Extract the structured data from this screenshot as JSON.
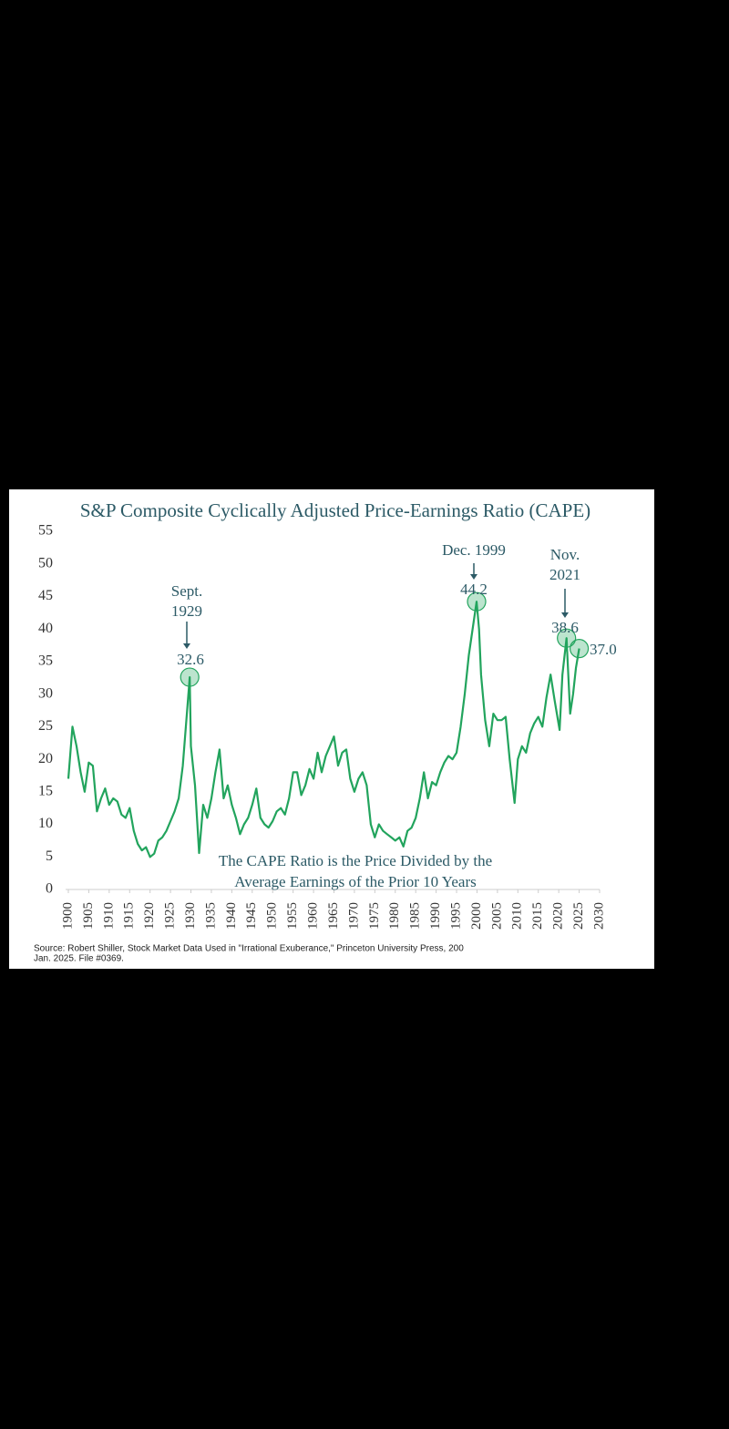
{
  "chart_data": {
    "type": "line",
    "title": "S&P Composite Cyclically Adjusted Price-Earnings Ratio (CAPE)",
    "note_lines": [
      "The CAPE Ratio is the Price Divided by the",
      "Average Earnings of the Prior 10 Years"
    ],
    "source_lines": [
      "Source: Robert Shiller, Stock Market Data Used in \"Irrational Exuberance,\" Princeton University Press, 200",
      "Jan. 2025. File #0369."
    ],
    "annotations": [
      {
        "lines": [
          "Sept.",
          "1929"
        ],
        "label": "32.6",
        "x": 1929.7,
        "value": 32.6
      },
      {
        "lines": [
          "Dec. 1999"
        ],
        "label": "44.2",
        "x": 1999.9,
        "value": 44.2
      },
      {
        "lines": [
          "Nov.",
          "2021"
        ],
        "label": "38.6",
        "x": 2021.9,
        "value": 38.6
      },
      {
        "lines": [],
        "label": "37.0",
        "x": 2025,
        "value": 37.0
      }
    ],
    "color": "#22a45d",
    "x": [
      1900,
      1901,
      1902,
      1903,
      1904,
      1905,
      1906,
      1907,
      1908,
      1909,
      1910,
      1911,
      1912,
      1913,
      1914,
      1915,
      1916,
      1917,
      1918,
      1919,
      1920,
      1921,
      1922,
      1923,
      1924,
      1925,
      1926,
      1927,
      1928,
      1929.7,
      1930,
      1931,
      1932,
      1933,
      1934,
      1935,
      1936,
      1937,
      1938,
      1939,
      1940,
      1941,
      1942,
      1943,
      1944,
      1945,
      1946,
      1947,
      1948,
      1949,
      1950,
      1951,
      1952,
      1953,
      1954,
      1955,
      1956,
      1957,
      1958,
      1959,
      1960,
      1961,
      1962,
      1963,
      1964,
      1965,
      1966,
      1967,
      1968,
      1969,
      1970,
      1971,
      1972,
      1973,
      1974,
      1975,
      1976,
      1977,
      1978,
      1979,
      1980,
      1981,
      1982,
      1983,
      1984,
      1985,
      1986,
      1987,
      1988,
      1989,
      1990,
      1991,
      1992,
      1993,
      1994,
      1995,
      1996,
      1997,
      1998,
      1999.9,
      2000.5,
      2001,
      2002,
      2003,
      2004,
      2005,
      2006,
      2007,
      2008,
      2009.2,
      2010,
      2011,
      2012,
      2013,
      2014,
      2015,
      2016,
      2017,
      2018,
      2019,
      2020.2,
      2020.9,
      2021.9,
      2022.8,
      2023.5,
      2024.2,
      2025
    ],
    "values": [
      17,
      25,
      22,
      18,
      15,
      19.5,
      19,
      12,
      14,
      15.5,
      13,
      14,
      13.5,
      11.5,
      11,
      12.5,
      9,
      7,
      6,
      6.5,
      5,
      5.5,
      7.5,
      8,
      9,
      10.5,
      12,
      14,
      19,
      32.6,
      22,
      16,
      5.6,
      13,
      11,
      14,
      18,
      21.5,
      14,
      16,
      13,
      11,
      8.5,
      10,
      11,
      13,
      15.5,
      11,
      10,
      9.5,
      10.5,
      12,
      12.5,
      11.5,
      14,
      18,
      18,
      14.5,
      16,
      18.5,
      17,
      21,
      18,
      20.5,
      22,
      23.5,
      19,
      21,
      21.5,
      17,
      15,
      17,
      18,
      16,
      10,
      8,
      10,
      9,
      8.5,
      8,
      7.5,
      8,
      6.6,
      9,
      9.5,
      11,
      14,
      18,
      14,
      16.5,
      16,
      18,
      19.5,
      20.5,
      20,
      21,
      25,
      30,
      36,
      44.2,
      40,
      33,
      26,
      22,
      27,
      26,
      26,
      26.5,
      20,
      13.3,
      20,
      22,
      21,
      24,
      25.5,
      26.5,
      25,
      29.5,
      33,
      29,
      24.5,
      33,
      38.6,
      27,
      30,
      34,
      37.0
    ],
    "xlim": [
      1900,
      2030
    ],
    "xticks": [
      1900,
      1905,
      1910,
      1915,
      1920,
      1925,
      1930,
      1935,
      1940,
      1945,
      1950,
      1955,
      1960,
      1965,
      1970,
      1975,
      1980,
      1985,
      1990,
      1995,
      2000,
      2005,
      2010,
      2015,
      2020,
      2025,
      2030
    ],
    "ylim": [
      0,
      55
    ],
    "yticks": [
      0,
      5,
      10,
      15,
      20,
      25,
      30,
      35,
      40,
      45,
      50,
      55
    ]
  }
}
